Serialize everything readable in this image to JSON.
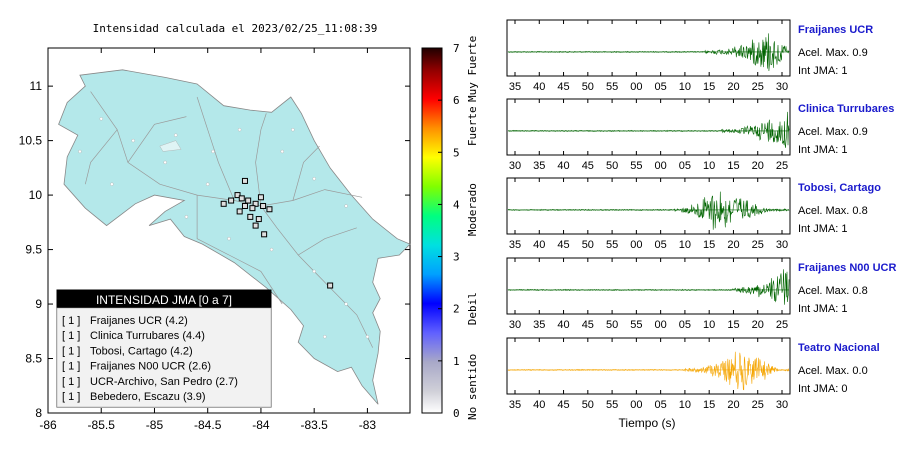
{
  "map": {
    "title": "Intensidad calculada el 2023/02/25_11:08:39",
    "lon_ticks": [
      "-86",
      "-85.5",
      "-85",
      "-84.5",
      "-84",
      "-83.5",
      "-83"
    ],
    "lat_ticks": [
      "11",
      "10.5",
      "10",
      "9.5",
      "9",
      "8.5",
      "8"
    ],
    "land_color": "#b4e8ea",
    "stations": [
      {
        "lon": -84.22,
        "lat": 10.0
      },
      {
        "lon": -84.18,
        "lat": 9.97
      },
      {
        "lon": -84.12,
        "lat": 9.95
      },
      {
        "lon": -84.05,
        "lat": 9.92
      },
      {
        "lon": -84.0,
        "lat": 9.98
      },
      {
        "lon": -83.98,
        "lat": 9.9
      },
      {
        "lon": -84.08,
        "lat": 9.88
      },
      {
        "lon": -84.15,
        "lat": 9.9
      },
      {
        "lon": -84.2,
        "lat": 9.85
      },
      {
        "lon": -84.1,
        "lat": 9.8
      },
      {
        "lon": -84.02,
        "lat": 9.78
      },
      {
        "lon": -83.92,
        "lat": 9.87
      },
      {
        "lon": -84.35,
        "lat": 9.92
      },
      {
        "lon": -84.28,
        "lat": 9.95
      },
      {
        "lon": -84.15,
        "lat": 10.13
      },
      {
        "lon": -84.05,
        "lat": 9.72
      },
      {
        "lon": -83.97,
        "lat": 9.64
      },
      {
        "lon": -83.35,
        "lat": 9.17
      }
    ]
  },
  "legend": {
    "title": "INTENSIDAD JMA [0 a 7]",
    "items": [
      {
        "level": "[ 1 ]",
        "label": "Fraijanes UCR (4.2)"
      },
      {
        "level": "[ 1 ]",
        "label": "Clinica Turrubares (4.4)"
      },
      {
        "level": "[ 1 ]",
        "label": "Tobosi, Cartago (4.2)"
      },
      {
        "level": "[ 1 ]",
        "label": "Fraijanes N00 UCR (2.6)"
      },
      {
        "level": "[ 1 ]",
        "label": "UCR-Archivo, San Pedro (2.7)"
      },
      {
        "level": "[ 1 ]",
        "label": "Bebedero, Escazu (3.9)"
      }
    ]
  },
  "colorbar": {
    "ticks": [
      "0",
      "1",
      "2",
      "3",
      "4",
      "5",
      "6",
      "7"
    ],
    "labels": [
      "No sentido",
      "Debil",
      "Moderado",
      "Fuerte",
      "Muy Fuerte"
    ]
  },
  "chart_data": [
    {
      "type": "line",
      "station": "Fraijanes UCR",
      "accel_label": "Acel. Max. 0.9",
      "int_label": "Int JMA: 1",
      "x_ticks": [
        "35",
        "40",
        "45",
        "50",
        "55",
        "00",
        "05",
        "10",
        "15",
        "20",
        "25",
        "30"
      ],
      "color": "#006400",
      "onset": 0.7,
      "peak": 0.93,
      "decay": 0.97
    },
    {
      "type": "line",
      "station": "Clinica Turrubares",
      "accel_label": "Acel. Max. 0.9",
      "int_label": "Int JMA: 1",
      "x_ticks": [
        "30",
        "35",
        "40",
        "45",
        "50",
        "55",
        "00",
        "05",
        "10",
        "15",
        "20",
        "25"
      ],
      "color": "#006400",
      "onset": 0.76,
      "peak": 0.99,
      "decay": 1.0
    },
    {
      "type": "line",
      "station": "Tobosi, Cartago",
      "accel_label": "Acel. Max. 0.8",
      "int_label": "Int JMA: 1",
      "x_ticks": [
        "35",
        "40",
        "45",
        "50",
        "55",
        "00",
        "05",
        "10",
        "15",
        "20",
        "25",
        "30"
      ],
      "color": "#006400",
      "onset": 0.59,
      "peak": 0.73,
      "decay": 0.9
    },
    {
      "type": "line",
      "station": "Fraijanes N00 UCR",
      "accel_label": "Acel. Max. 0.8",
      "int_label": "Int JMA: 1",
      "x_ticks": [
        "30",
        "35",
        "40",
        "45",
        "50",
        "55",
        "00",
        "05",
        "10",
        "15",
        "20",
        "25"
      ],
      "color": "#006400",
      "onset": 0.79,
      "peak": 0.99,
      "decay": 1.0
    },
    {
      "type": "line",
      "station": "Teatro Nacional",
      "accel_label": "Acel. Max. 0.0",
      "int_label": "Int JMA: 0",
      "x_ticks": [
        "35",
        "40",
        "45",
        "50",
        "55",
        "00",
        "05",
        "10",
        "15",
        "20",
        "25",
        "30"
      ],
      "color": "#f5a500",
      "onset": 0.63,
      "peak": 0.83,
      "decay": 0.93
    }
  ],
  "seismo_xlabel": "Tiempo (s)"
}
